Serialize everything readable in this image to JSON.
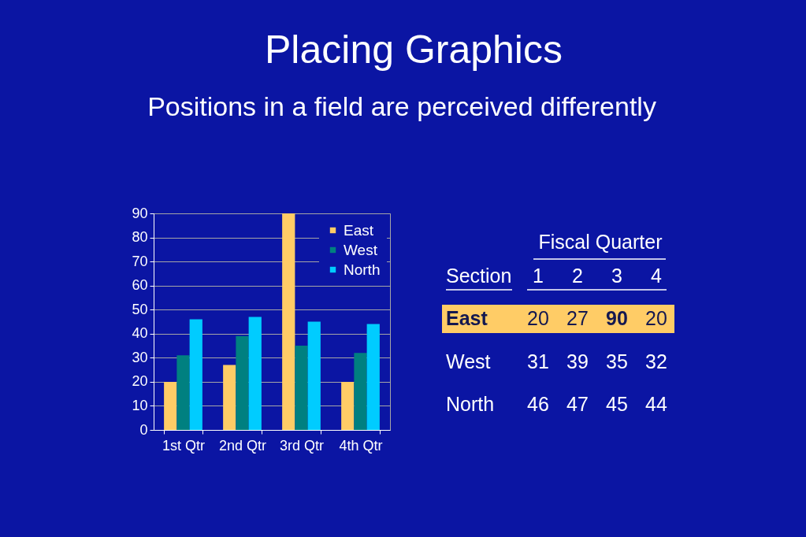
{
  "chart_data": {
    "type": "bar",
    "title": "Placing Graphics",
    "subtitle": "Positions in a field are perceived differently",
    "categories": [
      "1st Qtr",
      "2nd Qtr",
      "3rd Qtr",
      "4th Qtr"
    ],
    "series": [
      {
        "name": "East",
        "color": "#ffcc66",
        "values": [
          20,
          27,
          90,
          20
        ]
      },
      {
        "name": "West",
        "color": "#008080",
        "values": [
          31,
          39,
          35,
          32
        ]
      },
      {
        "name": "North",
        "color": "#00ccff",
        "values": [
          46,
          47,
          45,
          44
        ]
      }
    ],
    "ylim": [
      0,
      90
    ],
    "yticks": [
      0,
      10,
      20,
      30,
      40,
      50,
      60,
      70,
      80,
      90
    ],
    "grid": "y",
    "legend": "top right",
    "annotations": [
      "Fiscal Quarter",
      "Section",
      "1",
      "2",
      "3",
      "4",
      "20",
      "27",
      "90",
      "20",
      "31",
      "39",
      "35",
      "32",
      "46",
      "47",
      "45",
      "44"
    ]
  }
}
